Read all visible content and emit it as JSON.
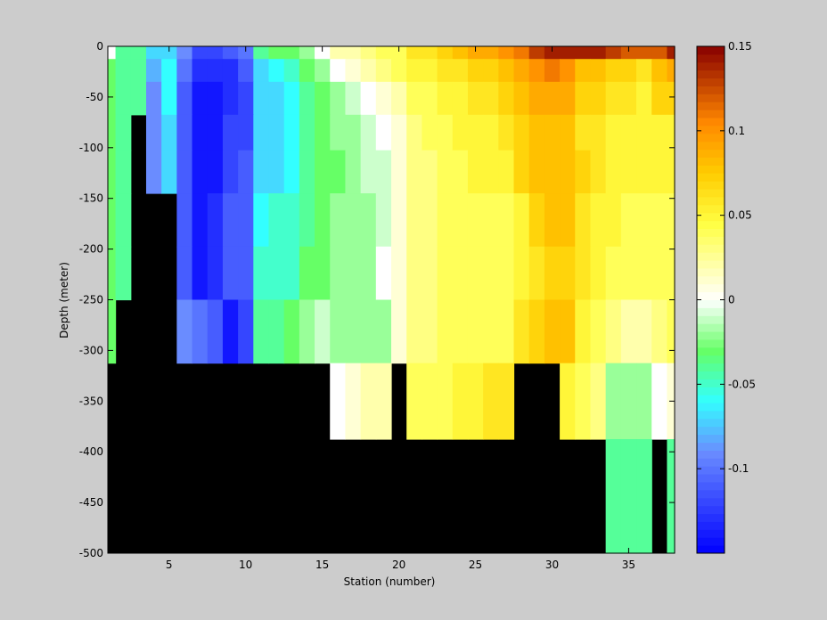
{
  "figure": {
    "background": "#cccccc"
  },
  "chart_data": {
    "type": "heatmap",
    "title": "",
    "xlabel": "Station (number)",
    "ylabel": "Depth (meter)",
    "xlim": [
      1,
      38
    ],
    "ylim": [
      -500,
      0
    ],
    "xticks": [
      5,
      10,
      15,
      20,
      25,
      30,
      35
    ],
    "yticks": [
      0,
      -50,
      -100,
      -150,
      -200,
      -250,
      -300,
      -350,
      -400,
      -450,
      -500
    ],
    "mask_color": "#000000",
    "colorbar": {
      "range": [
        -0.15,
        0.15
      ],
      "ticks": [
        0.15,
        0.1,
        0.05,
        0,
        -0.05,
        -0.1
      ],
      "colormap": "blue-cyan-green-white-yellow-orange-darkred",
      "stops": [
        [
          0.0,
          "#0000ff"
        ],
        [
          0.2,
          "#6a8cff"
        ],
        [
          0.3,
          "#33ffff"
        ],
        [
          0.4,
          "#66ff66"
        ],
        [
          0.5,
          "#ffffff"
        ],
        [
          0.65,
          "#ffff44"
        ],
        [
          0.75,
          "#ffcc00"
        ],
        [
          0.85,
          "#ff8800"
        ],
        [
          1.0,
          "#880000"
        ]
      ]
    },
    "stations": [
      1,
      2,
      3,
      4,
      5,
      6,
      7,
      8,
      9,
      10,
      11,
      12,
      13,
      14,
      15,
      16,
      17,
      18,
      19,
      20,
      21,
      22,
      23,
      24,
      25,
      26,
      27,
      28,
      29,
      30,
      31,
      32,
      33,
      34,
      35,
      36,
      37,
      38
    ],
    "depth_bins": [
      -5,
      -20,
      -50,
      -85,
      -120,
      -170,
      -225,
      -275,
      -350,
      -425
    ],
    "values": [
      [
        0.0,
        -0.04,
        -0.04,
        -0.07,
        -0.07,
        -0.09,
        -0.12,
        -0.12,
        -0.11,
        -0.1,
        -0.04,
        -0.03,
        -0.03,
        -0.02,
        0.0,
        0.02,
        0.02,
        0.03,
        0.04,
        0.04,
        0.06,
        0.06,
        0.07,
        0.08,
        0.09,
        0.09,
        0.1,
        0.11,
        0.13,
        0.14,
        0.14,
        0.14,
        0.14,
        0.13,
        0.12,
        0.12,
        0.12,
        0.14
      ],
      [
        -0.03,
        -0.04,
        -0.04,
        -0.08,
        -0.06,
        -0.1,
        -0.13,
        -0.13,
        -0.13,
        -0.11,
        -0.07,
        -0.06,
        -0.05,
        -0.03,
        -0.02,
        0.0,
        0.01,
        0.02,
        0.03,
        0.04,
        0.05,
        0.05,
        0.06,
        0.06,
        0.07,
        0.07,
        0.08,
        0.09,
        0.1,
        0.11,
        0.1,
        0.08,
        0.08,
        0.07,
        0.07,
        0.06,
        0.08,
        0.09
      ],
      [
        -0.03,
        -0.04,
        -0.04,
        -0.09,
        -0.06,
        -0.11,
        -0.14,
        -0.14,
        -0.13,
        -0.12,
        -0.07,
        -0.07,
        -0.06,
        -0.04,
        -0.03,
        -0.02,
        -0.01,
        0.0,
        0.01,
        0.02,
        0.04,
        0.04,
        0.05,
        0.05,
        0.06,
        0.06,
        0.07,
        0.08,
        0.09,
        0.09,
        0.09,
        0.07,
        0.07,
        0.06,
        0.06,
        0.05,
        0.07,
        0.07
      ],
      [
        -0.03,
        -0.04,
        null,
        -0.09,
        -0.07,
        -0.11,
        -0.14,
        -0.14,
        -0.12,
        -0.12,
        -0.07,
        -0.07,
        -0.06,
        -0.04,
        -0.03,
        -0.02,
        -0.02,
        -0.01,
        0.0,
        0.01,
        0.03,
        0.04,
        0.04,
        0.05,
        0.05,
        0.05,
        0.06,
        0.07,
        0.08,
        0.08,
        0.08,
        0.06,
        0.06,
        0.05,
        0.05,
        0.05,
        0.05,
        0.05
      ],
      [
        -0.03,
        -0.04,
        null,
        -0.09,
        -0.07,
        -0.11,
        -0.14,
        -0.14,
        -0.12,
        -0.11,
        -0.07,
        -0.07,
        -0.06,
        -0.04,
        -0.03,
        -0.03,
        -0.02,
        -0.01,
        -0.01,
        0.01,
        0.03,
        0.03,
        0.04,
        0.04,
        0.05,
        0.05,
        0.05,
        0.07,
        0.08,
        0.08,
        0.08,
        0.07,
        0.06,
        0.05,
        0.05,
        0.05,
        0.05,
        0.05
      ],
      [
        -0.03,
        -0.04,
        null,
        null,
        null,
        -0.11,
        -0.14,
        -0.13,
        -0.11,
        -0.11,
        -0.06,
        -0.05,
        -0.05,
        -0.04,
        -0.03,
        -0.02,
        -0.02,
        -0.02,
        -0.01,
        0.01,
        0.03,
        0.03,
        0.04,
        0.04,
        0.04,
        0.04,
        0.04,
        0.05,
        0.07,
        0.08,
        0.08,
        0.06,
        0.05,
        0.05,
        0.04,
        0.04,
        0.04,
        0.04
      ],
      [
        -0.03,
        -0.04,
        null,
        null,
        null,
        -0.11,
        -0.14,
        -0.13,
        -0.11,
        -0.11,
        -0.05,
        -0.05,
        -0.05,
        -0.03,
        -0.03,
        -0.02,
        -0.02,
        -0.02,
        0.0,
        0.01,
        0.03,
        0.03,
        0.04,
        0.04,
        0.04,
        0.04,
        0.04,
        0.05,
        0.06,
        0.07,
        0.07,
        0.06,
        0.05,
        0.04,
        0.04,
        0.04,
        0.04,
        0.04
      ],
      [
        -0.03,
        null,
        null,
        null,
        null,
        -0.09,
        -0.1,
        -0.11,
        -0.14,
        -0.12,
        -0.04,
        -0.04,
        -0.03,
        -0.02,
        -0.01,
        -0.02,
        -0.02,
        -0.02,
        -0.02,
        0.01,
        0.03,
        0.03,
        0.04,
        0.04,
        0.04,
        0.04,
        0.04,
        0.06,
        0.07,
        0.08,
        0.08,
        0.05,
        0.04,
        0.03,
        0.02,
        0.02,
        0.03,
        0.04
      ],
      [
        null,
        null,
        null,
        null,
        null,
        null,
        null,
        null,
        null,
        null,
        null,
        null,
        null,
        null,
        null,
        0.0,
        0.01,
        0.02,
        0.02,
        null,
        0.04,
        0.04,
        0.04,
        0.05,
        0.05,
        0.06,
        0.06,
        null,
        null,
        null,
        0.05,
        0.04,
        0.03,
        -0.02,
        -0.02,
        -0.02,
        0.0,
        0.01
      ],
      [
        null,
        null,
        null,
        null,
        null,
        null,
        null,
        null,
        null,
        null,
        null,
        null,
        null,
        null,
        null,
        null,
        null,
        null,
        null,
        null,
        null,
        null,
        null,
        null,
        null,
        null,
        null,
        null,
        null,
        null,
        null,
        null,
        null,
        -0.04,
        -0.04,
        -0.04,
        null,
        -0.04
      ]
    ]
  }
}
